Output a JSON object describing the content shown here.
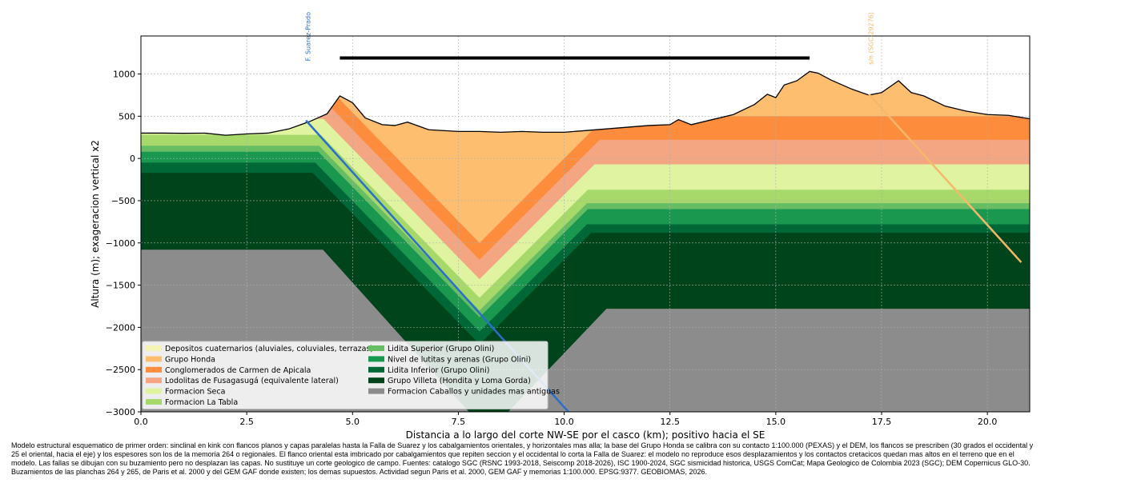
{
  "chart_data": {
    "type": "cross_section",
    "xlabel": "Distancia a lo largo del corte NW-SE por el casco (km); positivo hacia el SE",
    "ylabel": "Altura (m); exageracion vertical x2",
    "xlim": [
      0,
      21
    ],
    "ylim": [
      -3000,
      1450
    ],
    "xticks": [
      {
        "value": 0,
        "label": "0.0"
      },
      {
        "value": 2.5,
        "label": "2.5"
      },
      {
        "value": 5,
        "label": "5.0"
      },
      {
        "value": 7.5,
        "label": "7.5"
      },
      {
        "value": 10,
        "label": "10.0"
      },
      {
        "value": 12.5,
        "label": "12.5"
      },
      {
        "value": 15,
        "label": "15.0"
      },
      {
        "value": 17.5,
        "label": "17.5"
      },
      {
        "value": 20,
        "label": "20.0"
      }
    ],
    "yticks": [
      {
        "value": -3000,
        "label": "−3000"
      },
      {
        "value": -2500,
        "label": "−2500"
      },
      {
        "value": -2000,
        "label": "−2000"
      },
      {
        "value": -1500,
        "label": "−1500"
      },
      {
        "value": -1000,
        "label": "−1000"
      },
      {
        "value": -500,
        "label": "−500"
      },
      0,
      500,
      1000
    ],
    "grid": true,
    "legend": "lower left",
    "topography": {
      "color": "#000000",
      "x": [
        0,
        0.5,
        1.0,
        1.5,
        2.0,
        2.5,
        3.0,
        3.5,
        4.0,
        4.4,
        4.7,
        5.0,
        5.3,
        5.7,
        6.0,
        6.3,
        6.8,
        7.5,
        8.0,
        8.5,
        9.0,
        9.5,
        10.0,
        10.5,
        11.0,
        11.5,
        12.0,
        12.5,
        12.7,
        13.0,
        13.5,
        14.0,
        14.5,
        14.8,
        15.0,
        15.2,
        15.5,
        15.8,
        16.0,
        16.3,
        16.8,
        17.2,
        17.5,
        17.9,
        18.2,
        18.5,
        19.0,
        19.5,
        20.0,
        20.5,
        21.0
      ],
      "y": [
        300,
        300,
        298,
        300,
        275,
        290,
        300,
        350,
        440,
        530,
        740,
        660,
        480,
        400,
        390,
        430,
        340,
        320,
        320,
        310,
        320,
        310,
        310,
        330,
        350,
        370,
        390,
        400,
        460,
        400,
        460,
        520,
        640,
        760,
        720,
        870,
        920,
        1030,
        1010,
        930,
        820,
        750,
        780,
        920,
        780,
        740,
        620,
        560,
        520,
        510,
        470
      ]
    },
    "units": [
      {
        "name": "Depositos cuaternarios (aluviales, coluviales, terrazas)",
        "color": "#f6f4b4"
      },
      {
        "name": "Grupo Honda",
        "color": "#fdbf6f",
        "base_x": [
          0,
          4.6,
          8.0,
          11.0,
          21
        ],
        "base_y": [
          750,
          750,
          -1000,
          500,
          500
        ]
      },
      {
        "name": "Conglomerados de Carmen de Apicala",
        "color": "#fd8d3c",
        "base_x": [
          0,
          4.4,
          8.0,
          10.84,
          21
        ],
        "base_y": [
          650,
          650,
          -1200,
          220,
          220
        ]
      },
      {
        "name": "Lodolitas de Fusagasugá (equivalente lateral)",
        "color": "#f4a582",
        "base_x": [
          0,
          4.31,
          8.0,
          10.72,
          21
        ],
        "base_y": [
          470,
          470,
          -1430,
          -70,
          -70
        ]
      },
      {
        "name": "Formacion Seca",
        "color": "#e0f3a0",
        "base_x": [
          0,
          4.25,
          8.0,
          10.56,
          21
        ],
        "base_y": [
          280,
          280,
          -1650,
          -370,
          -370
        ]
      },
      {
        "name": "Formacion La Tabla",
        "color": "#a6d96a",
        "base_x": [
          0,
          4.21,
          8.0,
          10.54,
          21
        ],
        "base_y": [
          150,
          150,
          -1800,
          -530,
          -530
        ]
      },
      {
        "name": "Lidita Superior (Grupo Olini)",
        "color": "#66bd63",
        "base_x": [
          0,
          4.19,
          8.0,
          10.56,
          21
        ],
        "base_y": [
          80,
          80,
          -1880,
          -600,
          -600
        ]
      },
      {
        "name": "Nivel de lutitas y arenas (Grupo Olini)",
        "color": "#1a9850",
        "base_x": [
          0,
          4.12,
          8.0,
          10.54,
          21
        ],
        "base_y": [
          -50,
          -50,
          -2050,
          -780,
          -780
        ]
      },
      {
        "name": "Lidita Inferior (Grupo Olini)",
        "color": "#006837",
        "base_x": [
          0,
          4.06,
          8.0,
          10.64,
          21
        ],
        "base_y": [
          -170,
          -170,
          -2200,
          -880,
          -880
        ]
      },
      {
        "name": "Grupo Villeta (Hondita y Loma Gorda)",
        "color": "#00441b",
        "base_x": [
          0,
          4.3,
          8.2,
          11.0,
          21
        ],
        "base_y": [
          -1080,
          -1080,
          -3250,
          -1780,
          -1780
        ]
      },
      {
        "name": "Formacion Caballos y unidades mas antiguas",
        "color": "#8c8c8c"
      }
    ],
    "faults": [
      {
        "name": "F. Suarez-Prado",
        "color": "#2a6fc9",
        "x": [
          3.9,
          10.1
        ],
        "y": [
          450,
          -3000
        ]
      },
      {
        "name": "s/n (SGC-29276)",
        "color": "#f5b86a",
        "x": [
          17.2,
          20.8
        ],
        "y": [
          760,
          -1230
        ]
      }
    ],
    "bar": {
      "color": "#000000",
      "x": [
        4.7,
        15.8
      ],
      "y": [
        1190,
        1190
      ]
    },
    "caption": [
      "Modelo estructural esquematico de primer orden: sinclinal en kink con flancos planos y capas paralelas hasta la Falla de Suarez y los cabalgamientos orientales, y horizontales mas alla; la base del Grupo Honda se calibra con su contacto 1:100.000 (PEXAS) y el DEM, los flancos se prescriben (30 grados el occidental y",
      "25 el oriental, hacia el eje) y los espesores son los de la memoria 264 o regionales. El flanco oriental esta imbricado por cabalgamientos que repiten seccion y el occidental lo corta la Falla de Suarez: el modelo no reproduce esos desplazamientos y los contactos cretacicos quedan mas altos en el terreno que en el",
      "modelo. Las fallas se dibujan con su buzamiento pero no desplazan las capas. No sustituye un corte geologico de campo. Fuentes: catalogo SGC (RSNC 1993-2018, Seiscomp 2018-2026), ISC 1900-2024, SGC sismicidad historica, USGS ComCat; Mapa Geologico de Colombia 2023 (SGC); DEM Copernicus GLO-30.",
      "Buzamientos de las planchas 264 y 265, de Paris et al. 2000 y del GEM GAF donde existen; los demas supuestos. Actividad segun Paris et al. 2000, GEM GAF y memorias 1:100.000. EPSG:9377. GEOBIOMAS, 2026."
    ]
  }
}
